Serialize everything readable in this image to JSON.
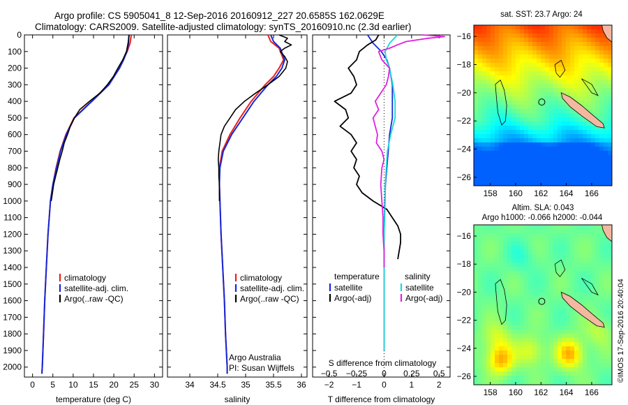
{
  "header": {
    "line1": "Argo profile: CS 5905041_8 12-Sep-2016 20160912_227 20.6585S 162.0629E",
    "line2": "Climatology: CARS2009. Satellite-adjusted climatology: synTS_20160910.nc (2.3d earlier)"
  },
  "colors": {
    "climatology": "#e8201c",
    "satellite": "#1428d8",
    "argo": "#000000",
    "satellite_salinity": "#18d8d8",
    "argo_salinity": "#e020e0"
  },
  "chart_data": [
    {
      "type": "line",
      "id": "temperature",
      "xlabel": "temperature (deg C)",
      "ylabel": "",
      "xlim": [
        -2,
        32
      ],
      "ylim": [
        2060,
        0
      ],
      "x_ticks": [
        0,
        5,
        10,
        15,
        20,
        25,
        30
      ],
      "y_ticks": [
        0,
        100,
        200,
        300,
        400,
        500,
        600,
        700,
        800,
        900,
        1000,
        1100,
        1200,
        1300,
        1400,
        1500,
        1600,
        1700,
        1800,
        1900,
        2000
      ],
      "legend": [
        "climatology",
        "satellite-adj. clim.",
        "Argo(..raw -QC)"
      ],
      "legend_position": "lower-middle",
      "series": [
        {
          "name": "climatology",
          "depth": [
            0,
            50,
            100,
            150,
            200,
            300,
            400,
            500,
            600,
            700,
            800,
            900,
            1000,
            1200,
            1400,
            1600,
            1800,
            2000,
            2040
          ],
          "values": [
            24.3,
            24.0,
            23.3,
            22.3,
            21.3,
            18.6,
            14.5,
            10.2,
            8.2,
            6.8,
            5.8,
            5.0,
            4.4,
            3.8,
            3.4,
            3.0,
            2.7,
            2.4,
            2.3
          ]
        },
        {
          "name": "satellite-adj. clim.",
          "depth": [
            0,
            50,
            100,
            150,
            200,
            300,
            400,
            500,
            600,
            700,
            800,
            900,
            1000,
            1200,
            1400,
            1600,
            1800,
            2000,
            2040
          ],
          "values": [
            23.7,
            23.6,
            23.2,
            22.4,
            21.4,
            18.8,
            14.6,
            10.3,
            8.3,
            6.9,
            5.9,
            5.0,
            4.4,
            3.8,
            3.4,
            3.0,
            2.7,
            2.4,
            2.3
          ]
        },
        {
          "name": "Argo(..raw -QC)",
          "depth": [
            0,
            50,
            100,
            150,
            200,
            250,
            300,
            350,
            400,
            450,
            500,
            550,
            600,
            650,
            700,
            750,
            800,
            850,
            900,
            950,
            1000
          ],
          "values": [
            23.8,
            23.5,
            23.1,
            22.2,
            21.0,
            19.9,
            18.4,
            16.6,
            14.0,
            11.6,
            10.3,
            9.3,
            8.6,
            7.8,
            7.3,
            6.7,
            6.2,
            5.7,
            5.2,
            4.9,
            4.6
          ]
        }
      ]
    },
    {
      "type": "line",
      "id": "salinity",
      "xlabel": "salinity",
      "ylabel": "",
      "xlim": [
        33.6,
        36.1
      ],
      "ylim": [
        2060,
        0
      ],
      "x_ticks": [
        34,
        34.5,
        35,
        35.5,
        36
      ],
      "legend": [
        "climatology",
        "satellite-adj. clim.",
        "Argo(..raw -QC)"
      ],
      "legend_position": "lower-right",
      "annotation": [
        "Argo Australia",
        "PI: Susan Wijffels"
      ],
      "series": [
        {
          "name": "climatology",
          "depth": [
            0,
            40,
            80,
            150,
            200,
            250,
            300,
            400,
            500,
            600,
            700,
            800,
            900,
            1000,
            1200,
            1400,
            1600,
            1800,
            2000,
            2040
          ],
          "values": [
            35.4,
            35.45,
            35.6,
            35.68,
            35.6,
            35.5,
            35.35,
            35.1,
            34.9,
            34.72,
            34.58,
            34.53,
            34.53,
            34.54,
            34.56,
            34.59,
            34.62,
            34.64,
            34.67,
            34.67
          ]
        },
        {
          "name": "satellite-adj. clim.",
          "depth": [
            0,
            40,
            80,
            150,
            200,
            250,
            300,
            400,
            500,
            600,
            700,
            800,
            900,
            1000,
            1200,
            1400,
            1600,
            1800,
            2000,
            2040
          ],
          "values": [
            35.45,
            35.5,
            35.62,
            35.7,
            35.65,
            35.55,
            35.4,
            35.15,
            34.95,
            34.75,
            34.6,
            34.54,
            34.53,
            34.54,
            34.56,
            34.59,
            34.62,
            34.64,
            34.67,
            34.67
          ]
        },
        {
          "name": "Argo(..raw -QC)",
          "depth": [
            0,
            20,
            40,
            60,
            80,
            100,
            130,
            160,
            200,
            250,
            300,
            350,
            400,
            450,
            500,
            550,
            600,
            650,
            700,
            750,
            800,
            850,
            900,
            950,
            1000
          ],
          "values": [
            35.6,
            35.75,
            35.7,
            35.82,
            35.7,
            35.62,
            35.7,
            35.75,
            35.72,
            35.6,
            35.4,
            35.18,
            34.98,
            34.82,
            34.72,
            34.62,
            34.56,
            34.54,
            34.52,
            34.51,
            34.52,
            34.52,
            34.53,
            34.53,
            34.53
          ]
        }
      ]
    },
    {
      "type": "line",
      "id": "differences",
      "xlabel": "T difference from climatology",
      "xlabel_top": "S difference from climatology",
      "xlim": [
        -2.6,
        2.4
      ],
      "ylim": [
        2060,
        0
      ],
      "x_ticks": [
        -2,
        -1,
        0,
        1,
        2
      ],
      "x_ticks_salinity": [
        -0.5,
        -0.25,
        0,
        0.25,
        0.5
      ],
      "legend_temperature": {
        "title": "temperature",
        "items": [
          "satellite",
          "Argo(-adj)"
        ]
      },
      "legend_salinity": {
        "title": "salinity",
        "items": [
          "satellite",
          "Argo(-adj)"
        ]
      },
      "series": [
        {
          "name": "temperature satellite",
          "depth": [
            0,
            50,
            100,
            150,
            200,
            300,
            400,
            500,
            600,
            700,
            800,
            900,
            1000,
            1200,
            1400,
            1600,
            1800,
            1900
          ],
          "values": [
            -0.6,
            -0.4,
            -0.1,
            0.1,
            0.2,
            0.3,
            0.3,
            0.3,
            0.2,
            0.15,
            0.1,
            0.05,
            0.03,
            0.0,
            0.0,
            0.0,
            0.0,
            0.0
          ]
        },
        {
          "name": "temperature Argo(-adj)",
          "depth": [
            0,
            30,
            60,
            100,
            150,
            200,
            250,
            300,
            350,
            400,
            450,
            500,
            550,
            600,
            650,
            700,
            750,
            800,
            850,
            900,
            950,
            1000,
            1050,
            1100,
            1150,
            1200,
            1250,
            1300,
            1350
          ],
          "values": [
            -0.2,
            -0.3,
            -0.6,
            -0.9,
            -1.0,
            -1.3,
            -1.1,
            -1.0,
            -1.2,
            -1.8,
            -1.4,
            -1.3,
            -1.6,
            -1.2,
            -1.0,
            -1.2,
            -1.0,
            -1.1,
            -0.9,
            -1.0,
            -0.8,
            -0.4,
            0.1,
            0.3,
            0.5,
            0.6,
            0.6,
            0.55,
            0.5
          ]
        },
        {
          "name": "salinity satellite",
          "depth": [
            0,
            50,
            100,
            150,
            200,
            300,
            400,
            500,
            600,
            700,
            800,
            900,
            1000,
            1200,
            1400,
            1600,
            1800,
            1900
          ],
          "values": [
            0.12,
            0.05,
            0.01,
            0.02,
            0.05,
            0.08,
            0.1,
            0.1,
            0.06,
            0.03,
            0.02,
            0.01,
            0.01,
            0.0,
            0.0,
            0.0,
            0.0,
            0.0
          ]
        },
        {
          "name": "salinity Argo(-adj)",
          "depth": [
            0,
            10,
            20,
            40,
            60,
            80,
            100,
            150,
            200,
            250,
            300,
            350,
            400,
            450,
            500,
            550,
            600,
            650,
            700,
            750,
            800,
            900,
            1000,
            1100,
            1200,
            1300,
            1400
          ],
          "values": [
            0.35,
            0.55,
            0.4,
            0.2,
            0.12,
            0.05,
            -0.05,
            -0.02,
            0.05,
            0.04,
            0.02,
            -0.03,
            -0.08,
            -0.05,
            -0.1,
            -0.08,
            -0.06,
            -0.07,
            -0.02,
            0.0,
            -0.02,
            -0.03,
            -0.02,
            -0.01,
            -0.01,
            0.0,
            0.0
          ]
        }
      ]
    },
    {
      "type": "heatmap",
      "id": "sst-map",
      "title": "sat. SST: 23.7 Argo: 24",
      "xlim": [
        156.7,
        167.6
      ],
      "ylim": [
        -26.6,
        -15.2
      ],
      "x_ticks": [
        158,
        160,
        162,
        164,
        166
      ],
      "y_ticks": [
        -16,
        -18,
        -20,
        -22,
        -24,
        -26
      ]
    },
    {
      "type": "heatmap",
      "id": "sla-map",
      "title": "Altim. SLA: 0.043",
      "subtitle": "Argo h1000: -0.066 h2000: -0.044",
      "xlim": [
        156.7,
        167.6
      ],
      "ylim": [
        -26.6,
        -15.2
      ],
      "x_ticks": [
        158,
        160,
        162,
        164,
        166
      ],
      "y_ticks": [
        -16,
        -18,
        -20,
        -22,
        -24,
        -26
      ]
    }
  ],
  "float_position": {
    "lon": 162.0629,
    "lat": -20.6585
  },
  "footer": "©IMOS 17-Sep-2016 20:40:04"
}
